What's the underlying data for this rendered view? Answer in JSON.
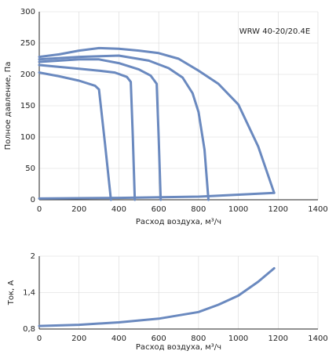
{
  "chart_data": [
    {
      "type": "line",
      "annotation": "WRW 40-20/20.4E",
      "x_label": "Расход воздуха, м³/ч",
      "y_label": "Полное давление, Па",
      "xlim": [
        0,
        1400
      ],
      "xticks": [
        0,
        200,
        400,
        600,
        800,
        1000,
        1200,
        1400
      ],
      "ylim": [
        0,
        300
      ],
      "yticks": [
        0,
        50,
        100,
        150,
        200,
        250,
        300
      ],
      "grid": true,
      "series": [
        {
          "color": "#6a89bf",
          "x": [
            0,
            100,
            200,
            280,
            300,
            330,
            360
          ],
          "values": [
            203,
            197,
            190,
            182,
            176,
            90,
            0
          ]
        },
        {
          "color": "#6a89bf",
          "x": [
            0,
            100,
            200,
            300,
            380,
            440,
            460,
            470,
            480
          ],
          "values": [
            215,
            212,
            209,
            206,
            203,
            196,
            188,
            100,
            0
          ]
        },
        {
          "color": "#6a89bf",
          "x": [
            0,
            100,
            200,
            300,
            400,
            500,
            560,
            590,
            600,
            610
          ],
          "values": [
            220,
            222,
            224,
            224,
            218,
            208,
            198,
            185,
            100,
            0
          ]
        },
        {
          "color": "#6a89bf",
          "x": [
            0,
            200,
            400,
            550,
            650,
            720,
            770,
            800,
            830,
            850
          ],
          "values": [
            224,
            228,
            230,
            222,
            210,
            195,
            170,
            140,
            80,
            0
          ]
        },
        {
          "color": "#6a89bf",
          "x": [
            0,
            100,
            200,
            300,
            400,
            500,
            600,
            700,
            800,
            900,
            1000,
            1100,
            1180
          ],
          "values": [
            228,
            232,
            238,
            242,
            241,
            238,
            234,
            225,
            206,
            185,
            152,
            85,
            11
          ]
        },
        {
          "color": "#6a89bf",
          "x": [
            0,
            400,
            800,
            1180
          ],
          "values": [
            2,
            3,
            5,
            11
          ]
        }
      ]
    },
    {
      "type": "line",
      "x_label": "Расход воздуха, м³/ч",
      "y_label": "Ток, А",
      "xlim": [
        0,
        1400
      ],
      "xticks": [
        0,
        200,
        400,
        600,
        800,
        1000,
        1200,
        1400
      ],
      "ylim": [
        0.8,
        2
      ],
      "yticks": [
        {
          "value": 0.8,
          "label": "0,8"
        },
        {
          "value": 1.4,
          "label": "1,4"
        },
        2
      ],
      "grid": true,
      "series": [
        {
          "color": "#6a89bf",
          "x": [
            0,
            200,
            400,
            600,
            800,
            900,
            1000,
            1100,
            1180
          ],
          "values": [
            0.85,
            0.87,
            0.91,
            0.97,
            1.08,
            1.2,
            1.35,
            1.58,
            1.8
          ]
        }
      ]
    }
  ]
}
